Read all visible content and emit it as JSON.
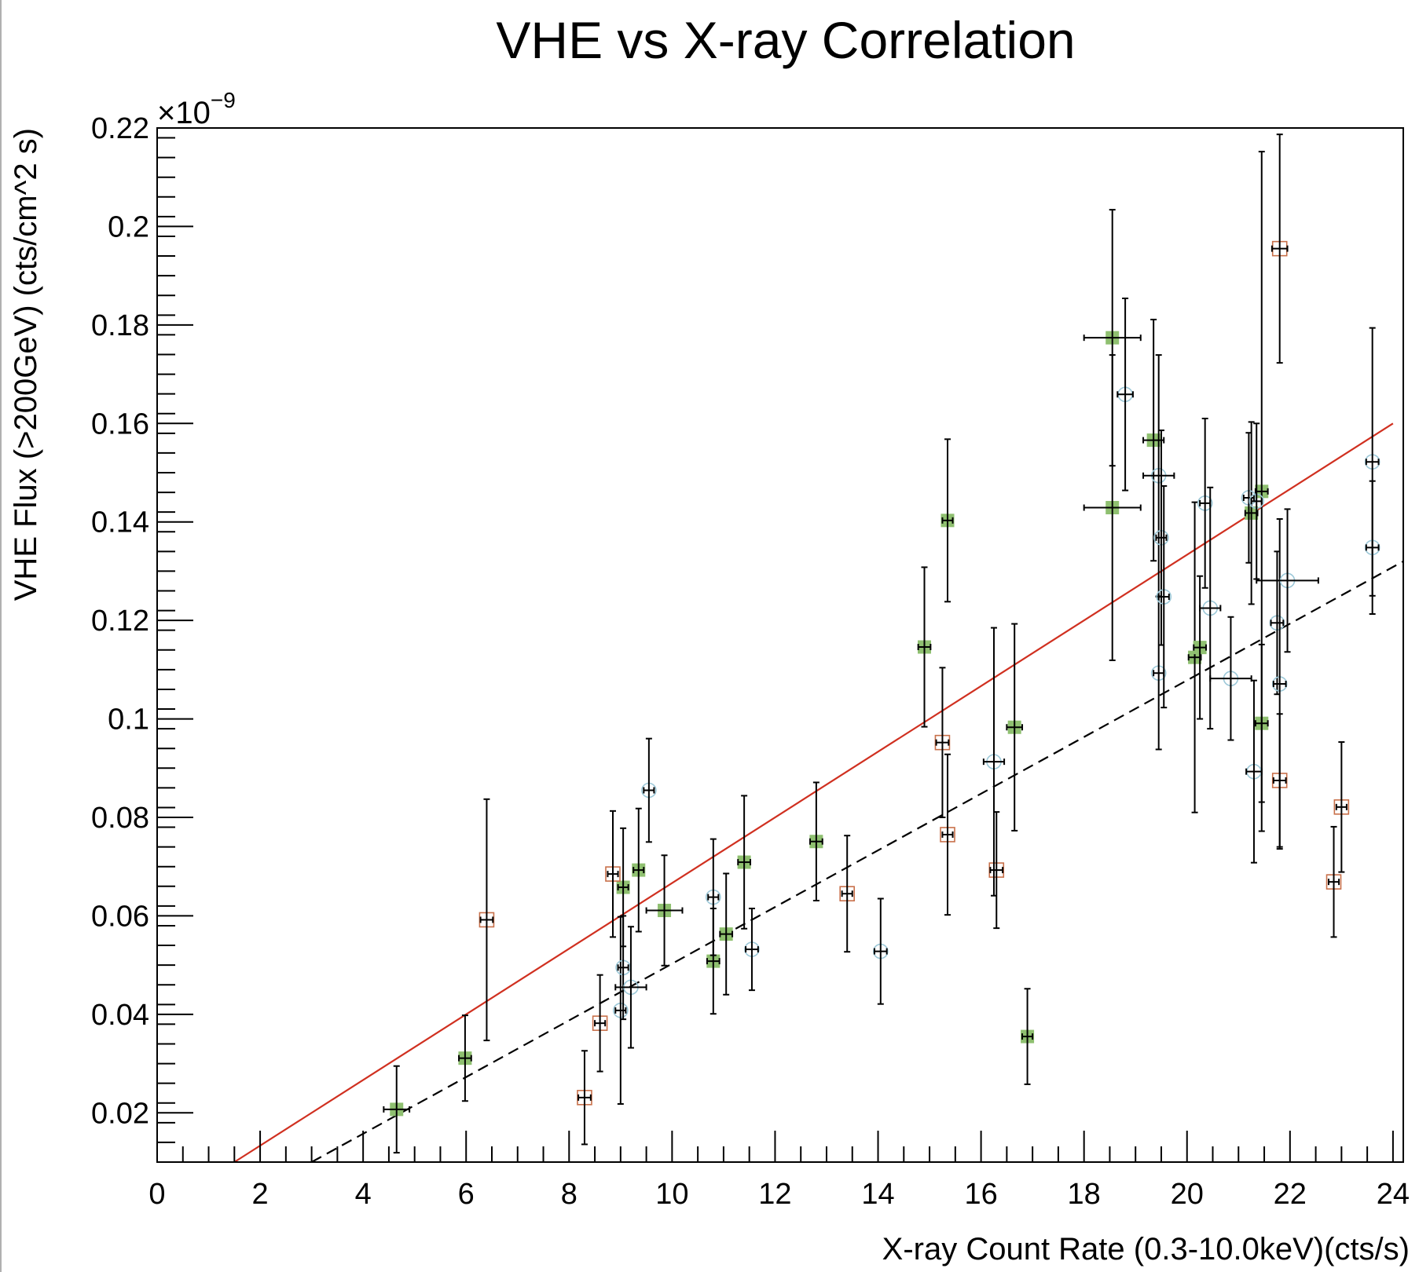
{
  "chart_data": {
    "type": "scatter",
    "title": "VHE vs X-ray Correlation",
    "xlabel": "X-ray Count Rate (0.3-10.0keV)(cts/s)",
    "ylabel": "VHE Flux (>200GeV) (cts/cm^2 s)",
    "y_multiplier_base": "×10",
    "y_multiplier_exp": "−9",
    "xlim": [
      0,
      24.2
    ],
    "ylim": [
      0.01,
      0.22
    ],
    "x_ticks": [
      "0",
      "2",
      "4",
      "6",
      "8",
      "10",
      "12",
      "14",
      "16",
      "18",
      "20",
      "22",
      "24"
    ],
    "y_ticks": [
      "0.02",
      "0.04",
      "0.06",
      "0.08",
      "0.1",
      "0.12",
      "0.14",
      "0.16",
      "0.18",
      "0.2",
      "0.22"
    ],
    "grid": false,
    "colors": {
      "green_marker": "#8fc070",
      "orange_marker": "#c8704a",
      "cyan_marker": "#9cc8d8",
      "fit_solid": "#d03020",
      "fit_dashed": "#000000"
    },
    "fit_lines": [
      {
        "style": "solid",
        "x": [
          1.5,
          24.0
        ],
        "y": [
          0.01,
          0.16
        ]
      },
      {
        "style": "dashed",
        "x": [
          3.0,
          24.2
        ],
        "y": [
          0.01,
          0.132
        ]
      }
    ],
    "series": [
      {
        "marker": "filled-square",
        "points": [
          {
            "x": 4.65,
            "y": 0.0207,
            "xe": 0.25,
            "ye": 0.0088
          },
          {
            "x": 5.98,
            "y": 0.0311,
            "xe": 0.12,
            "ye": 0.0087
          },
          {
            "x": 9.05,
            "y": 0.0658,
            "xe": 0.1,
            "ye": 0.012
          },
          {
            "x": 9.35,
            "y": 0.0693,
            "xe": 0.1,
            "ye": 0.0125
          },
          {
            "x": 9.85,
            "y": 0.0611,
            "xe": 0.35,
            "ye": 0.0112
          },
          {
            "x": 10.8,
            "y": 0.0508,
            "xe": 0.12,
            "ye": 0.0107
          },
          {
            "x": 11.05,
            "y": 0.0563,
            "xe": 0.12,
            "ye": 0.0123
          },
          {
            "x": 11.4,
            "y": 0.0709,
            "xe": 0.12,
            "ye": 0.0135
          },
          {
            "x": 12.8,
            "y": 0.0751,
            "xe": 0.12,
            "ye": 0.012
          },
          {
            "x": 14.9,
            "y": 0.1146,
            "xe": 0.12,
            "ye": 0.0162
          },
          {
            "x": 15.35,
            "y": 0.1403,
            "xe": 0.1,
            "ye": 0.0165
          },
          {
            "x": 16.65,
            "y": 0.0983,
            "xe": 0.15,
            "ye": 0.021
          },
          {
            "x": 16.9,
            "y": 0.0355,
            "xe": 0.1,
            "ye": 0.0097
          },
          {
            "x": 18.55,
            "y": 0.1774,
            "xe": 0.55,
            "ye": 0.026
          },
          {
            "x": 18.55,
            "y": 0.1429,
            "xe": 0.55,
            "ye": 0.031
          },
          {
            "x": 19.35,
            "y": 0.1566,
            "xe": 0.2,
            "ye": 0.0245
          },
          {
            "x": 20.15,
            "y": 0.1125,
            "xe": 0.12,
            "ye": 0.0315
          },
          {
            "x": 20.25,
            "y": 0.1145,
            "xe": 0.12,
            "ye": 0.0145
          },
          {
            "x": 21.25,
            "y": 0.1418,
            "xe": 0.12,
            "ye": 0.0185
          },
          {
            "x": 21.45,
            "y": 0.0991,
            "xe": 0.12,
            "ye": 0.016
          },
          {
            "x": 21.45,
            "y": 0.1462,
            "xe": 0.12,
            "ye": 0.069
          }
        ]
      },
      {
        "marker": "open-square",
        "points": [
          {
            "x": 6.4,
            "y": 0.0592,
            "xe": 0.12,
            "ye": 0.0245
          },
          {
            "x": 8.3,
            "y": 0.0231,
            "xe": 0.12,
            "ye": 0.0095
          },
          {
            "x": 8.6,
            "y": 0.0382,
            "xe": 0.1,
            "ye": 0.0098
          },
          {
            "x": 8.85,
            "y": 0.0685,
            "xe": 0.1,
            "ye": 0.0128
          },
          {
            "x": 13.4,
            "y": 0.0645,
            "xe": 0.1,
            "ye": 0.0118
          },
          {
            "x": 15.25,
            "y": 0.0952,
            "xe": 0.12,
            "ye": 0.0152
          },
          {
            "x": 15.35,
            "y": 0.0765,
            "xe": 0.1,
            "ye": 0.0163
          },
          {
            "x": 16.3,
            "y": 0.0693,
            "xe": 0.12,
            "ye": 0.0118
          },
          {
            "x": 21.8,
            "y": 0.1955,
            "xe": 0.15,
            "ye": 0.0232
          },
          {
            "x": 21.8,
            "y": 0.0875,
            "xe": 0.12,
            "ye": 0.0135
          },
          {
            "x": 22.85,
            "y": 0.0669,
            "xe": 0.1,
            "ye": 0.0112
          },
          {
            "x": 23.0,
            "y": 0.0821,
            "xe": 0.1,
            "ye": 0.0132
          }
        ]
      },
      {
        "marker": "open-circle",
        "points": [
          {
            "x": 9.0,
            "y": 0.0408,
            "xe": 0.1,
            "ye": 0.019
          },
          {
            "x": 9.05,
            "y": 0.0495,
            "xe": 0.1,
            "ye": 0.0105
          },
          {
            "x": 9.2,
            "y": 0.0455,
            "xe": 0.3,
            "ye": 0.0123
          },
          {
            "x": 9.55,
            "y": 0.0855,
            "xe": 0.1,
            "ye": 0.0105
          },
          {
            "x": 10.8,
            "y": 0.0638,
            "xe": 0.1,
            "ye": 0.0118
          },
          {
            "x": 11.55,
            "y": 0.0532,
            "xe": 0.12,
            "ye": 0.0083
          },
          {
            "x": 14.05,
            "y": 0.0528,
            "xe": 0.12,
            "ye": 0.0107
          },
          {
            "x": 16.25,
            "y": 0.0913,
            "xe": 0.2,
            "ye": 0.0272
          },
          {
            "x": 18.8,
            "y": 0.1659,
            "xe": 0.15,
            "ye": 0.0195
          },
          {
            "x": 19.45,
            "y": 0.1494,
            "xe": 0.3,
            "ye": 0.0245
          },
          {
            "x": 19.45,
            "y": 0.1093,
            "xe": 0.1,
            "ye": 0.0155
          },
          {
            "x": 19.5,
            "y": 0.1368,
            "xe": 0.1,
            "ye": 0.0218
          },
          {
            "x": 19.55,
            "y": 0.1248,
            "xe": 0.1,
            "ye": 0.0225
          },
          {
            "x": 20.35,
            "y": 0.1438,
            "xe": 0.1,
            "ye": 0.0172
          },
          {
            "x": 20.45,
            "y": 0.1225,
            "xe": 0.2,
            "ye": 0.0245
          },
          {
            "x": 20.85,
            "y": 0.1082,
            "xe": 0.4,
            "ye": 0.0125
          },
          {
            "x": 21.2,
            "y": 0.1449,
            "xe": 0.1,
            "ye": 0.0132
          },
          {
            "x": 21.3,
            "y": 0.0893,
            "xe": 0.15,
            "ye": 0.0185
          },
          {
            "x": 21.35,
            "y": 0.1442,
            "xe": 0.1,
            "ye": 0.0158
          },
          {
            "x": 21.75,
            "y": 0.1195,
            "xe": 0.12,
            "ye": 0.0145
          },
          {
            "x": 21.8,
            "y": 0.1071,
            "xe": 0.12,
            "ye": 0.0335
          },
          {
            "x": 21.95,
            "y": 0.1281,
            "xe": 0.6,
            "ye": 0.0145
          },
          {
            "x": 23.6,
            "y": 0.1522,
            "xe": 0.12,
            "ye": 0.0272
          },
          {
            "x": 23.6,
            "y": 0.1348,
            "xe": 0.12,
            "ye": 0.0135
          }
        ]
      }
    ]
  }
}
